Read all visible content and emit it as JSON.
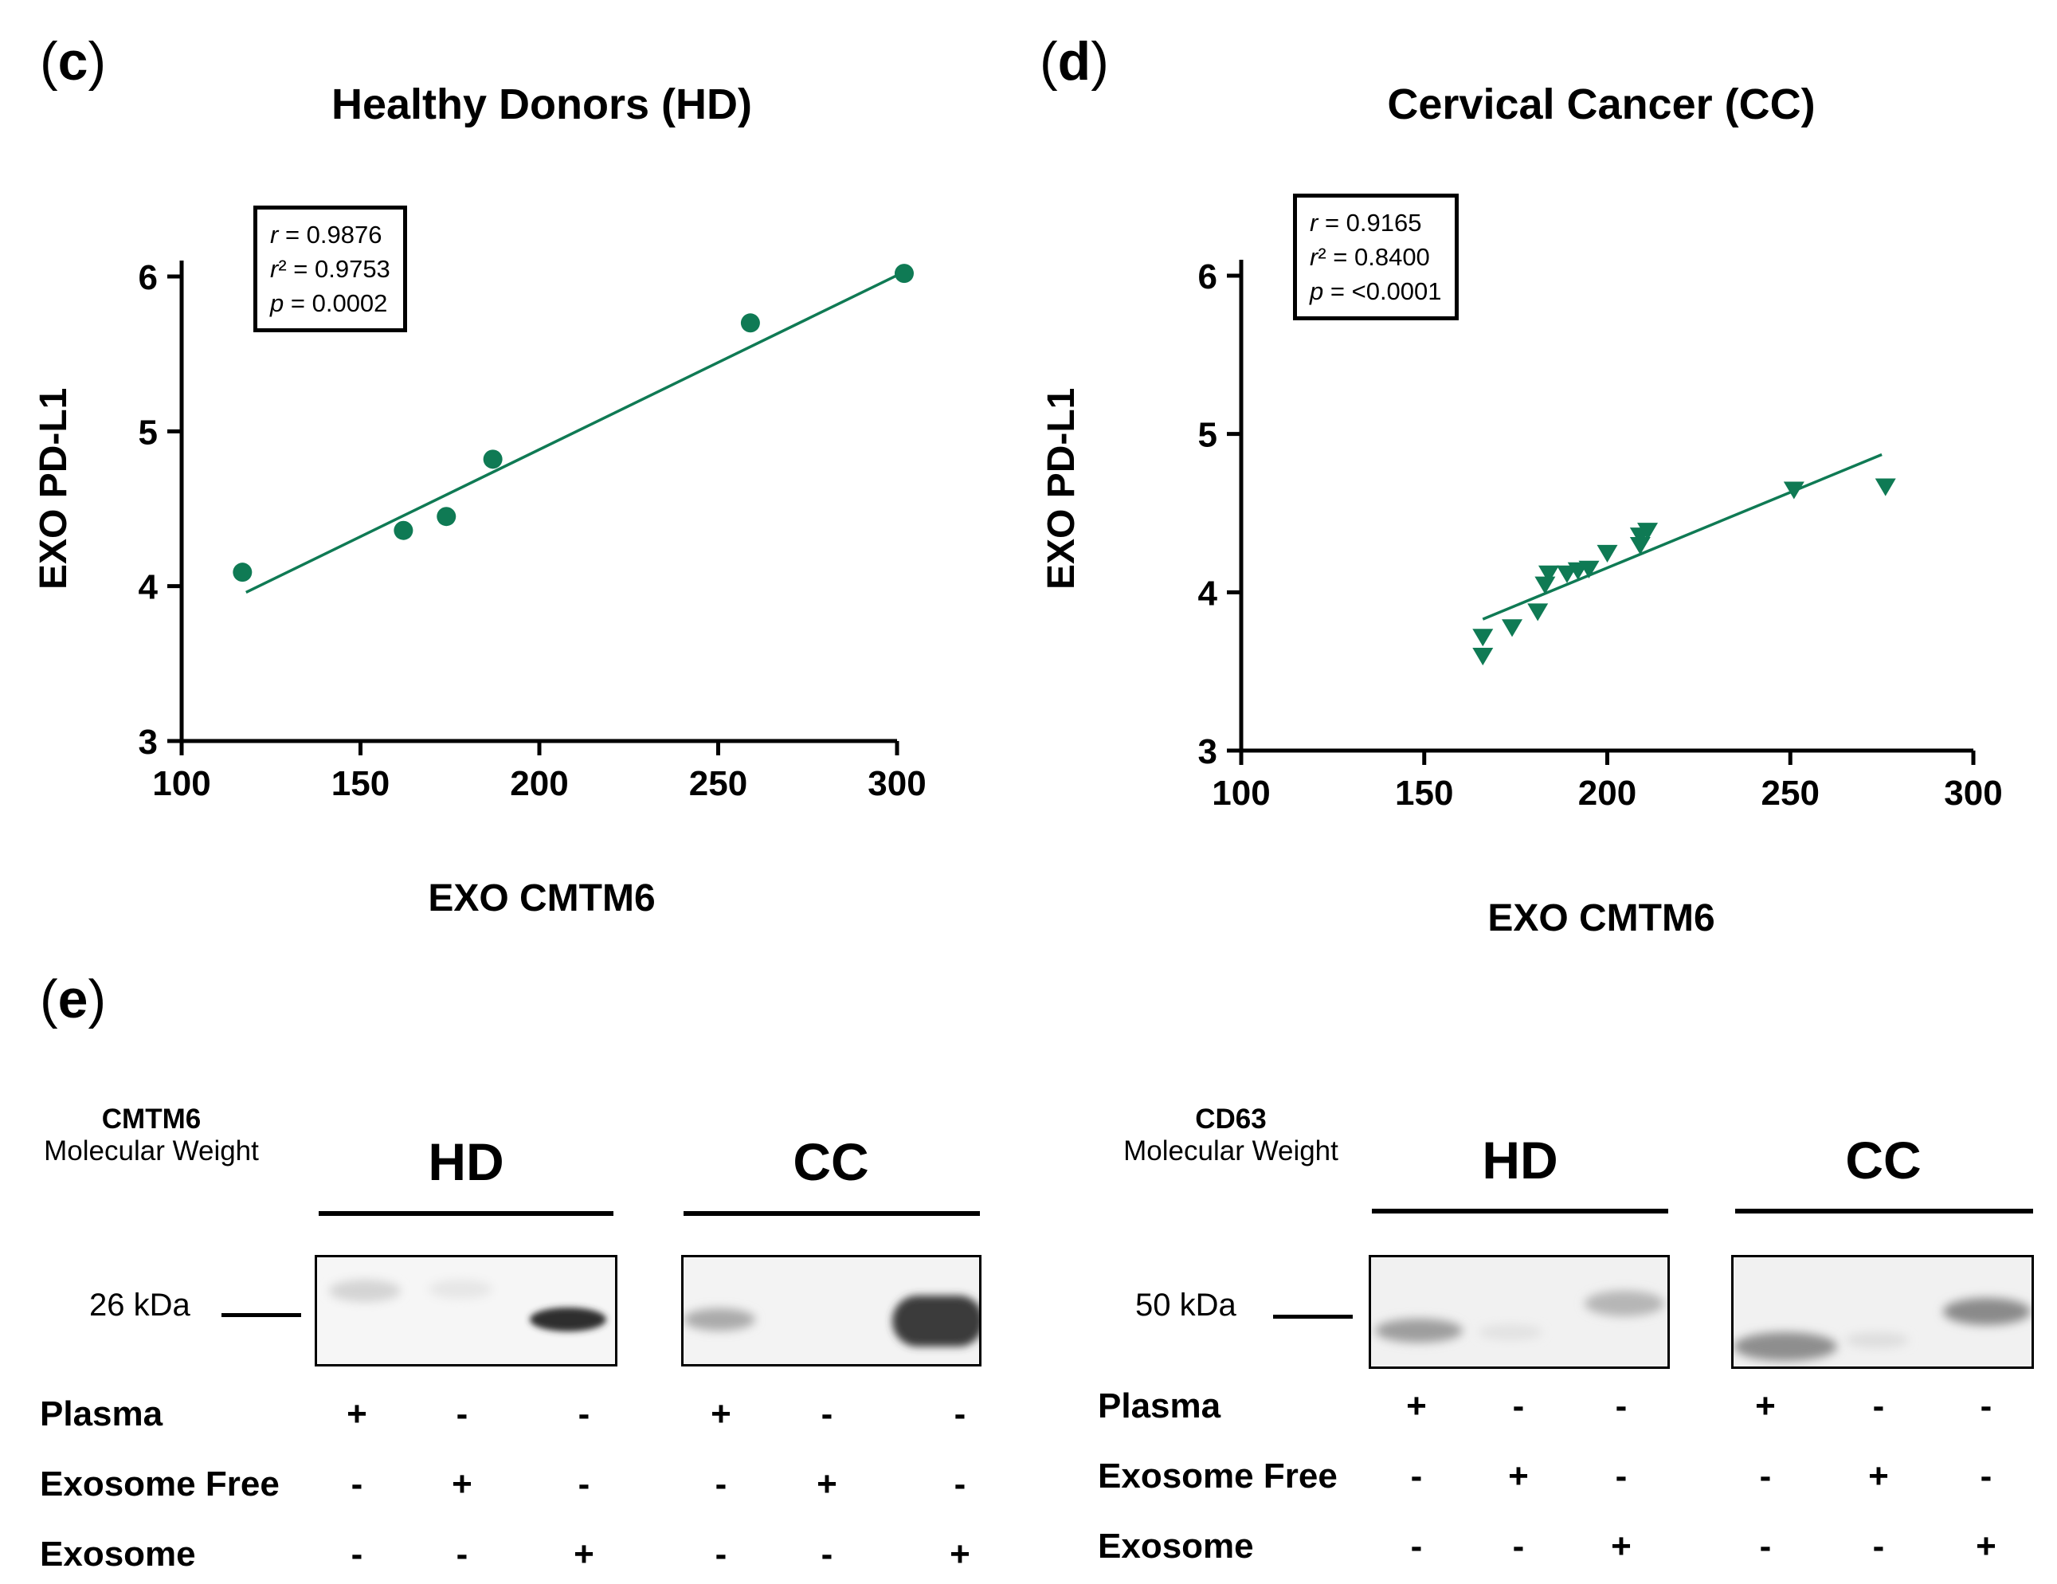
{
  "panels": {
    "c": "c",
    "d": "d",
    "e": "e"
  },
  "colors": {
    "series": "#0f7a54",
    "axis": "#000000"
  },
  "chart_data": [
    {
      "id": "c",
      "type": "scatter",
      "title": "Healthy Donors (HD)",
      "xlabel": "EXO CMTM6",
      "ylabel": "EXO PD-L1",
      "xlim": [
        100,
        300
      ],
      "ylim": [
        3,
        6
      ],
      "xticks": [
        100,
        150,
        200,
        250,
        300
      ],
      "yticks": [
        3,
        4,
        5,
        6
      ],
      "marker": "circle",
      "stats": {
        "r": "0.9876",
        "r2": "0.9753",
        "p": "0.0002"
      },
      "points": [
        {
          "x": 117,
          "y": 4.09
        },
        {
          "x": 162,
          "y": 4.36
        },
        {
          "x": 174,
          "y": 4.45
        },
        {
          "x": 187,
          "y": 4.82
        },
        {
          "x": 259,
          "y": 5.7
        },
        {
          "x": 302,
          "y": 6.02
        }
      ],
      "fit": {
        "x1": 118,
        "y1": 3.96,
        "x2": 302,
        "y2": 6.03
      }
    },
    {
      "id": "d",
      "type": "scatter",
      "title": "Cervical Cancer (CC)",
      "xlabel": "EXO CMTM6",
      "ylabel": "EXO PD-L1",
      "xlim": [
        100,
        300
      ],
      "ylim": [
        3,
        6
      ],
      "xticks": [
        100,
        150,
        200,
        250,
        300
      ],
      "yticks": [
        3,
        4,
        5,
        6
      ],
      "marker": "triangle-down",
      "stats": {
        "r": "0.9165",
        "r2": "0.8400",
        "p": "<0.0001"
      },
      "points": [
        {
          "x": 166,
          "y": 3.6
        },
        {
          "x": 166,
          "y": 3.72
        },
        {
          "x": 174,
          "y": 3.78
        },
        {
          "x": 181,
          "y": 3.88
        },
        {
          "x": 183,
          "y": 4.05
        },
        {
          "x": 184,
          "y": 4.12
        },
        {
          "x": 189,
          "y": 4.12
        },
        {
          "x": 192,
          "y": 4.14
        },
        {
          "x": 195,
          "y": 4.15
        },
        {
          "x": 200,
          "y": 4.25
        },
        {
          "x": 209,
          "y": 4.3
        },
        {
          "x": 209,
          "y": 4.36
        },
        {
          "x": 211,
          "y": 4.39
        },
        {
          "x": 251,
          "y": 4.65
        },
        {
          "x": 276,
          "y": 4.67
        }
      ],
      "fit": {
        "x1": 166,
        "y1": 3.83,
        "x2": 275,
        "y2": 4.87
      }
    }
  ],
  "western_blot": [
    {
      "protein": "CMTM6",
      "mw_label": "Molecular Weight",
      "mw": "26 kDa",
      "groups": [
        "HD",
        "CC"
      ],
      "rows": [
        {
          "label": "Plasma",
          "HD": [
            "+",
            "-",
            "-"
          ],
          "CC": [
            "+",
            "-",
            "-"
          ]
        },
        {
          "label": "Exosome Free",
          "HD": [
            "-",
            "+",
            "-"
          ],
          "CC": [
            "-",
            "+",
            "-"
          ]
        },
        {
          "label": "Exosome",
          "HD": [
            "-",
            "-",
            "+"
          ],
          "CC": [
            "-",
            "-",
            "+"
          ]
        }
      ]
    },
    {
      "protein": "CD63",
      "mw_label": "Molecular Weight",
      "mw": "50 kDa",
      "groups": [
        "HD",
        "CC"
      ],
      "rows": [
        {
          "label": "Plasma",
          "HD": [
            "+",
            "-",
            "-"
          ],
          "CC": [
            "+",
            "-",
            "-"
          ]
        },
        {
          "label": "Exosome Free",
          "HD": [
            "-",
            "+",
            "-"
          ],
          "CC": [
            "-",
            "+",
            "-"
          ]
        },
        {
          "label": "Exosome",
          "HD": [
            "-",
            "-",
            "+"
          ],
          "CC": [
            "-",
            "-",
            "+"
          ]
        }
      ]
    }
  ]
}
